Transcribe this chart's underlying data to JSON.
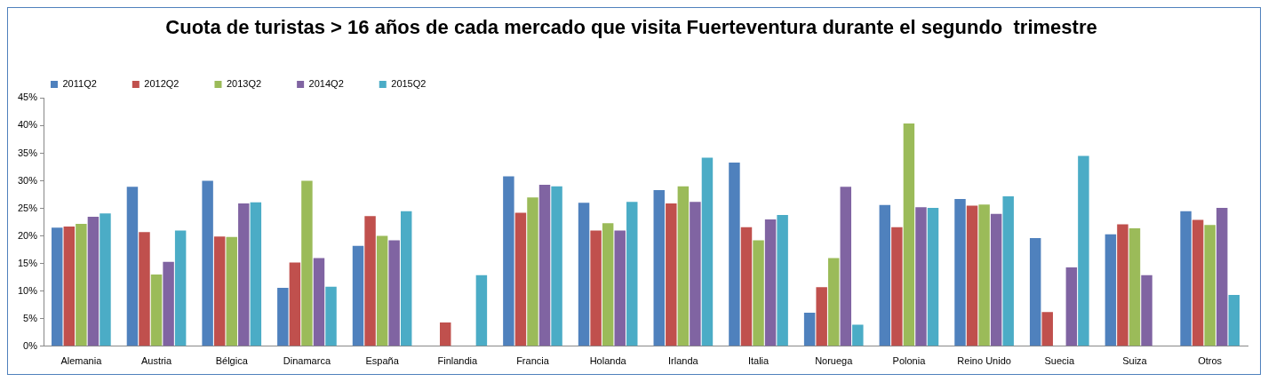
{
  "chart_data": {
    "type": "bar",
    "title": "Cuota de turistas > 16 años de cada mercado que visita Fuerteventura durante el segundo  trimestre",
    "categories": [
      "Alemania",
      "Austria",
      "Bélgica",
      "Dinamarca",
      "España",
      "Finlandia",
      "Francia",
      "Holanda",
      "Irlanda",
      "Italia",
      "Noruega",
      "Polonia",
      "Reino Unido",
      "Suecia",
      "Suiza",
      "Otros"
    ],
    "series": [
      {
        "name": "2011Q2",
        "color": "#4f81bd",
        "values": [
          21.5,
          28.9,
          30.0,
          10.6,
          18.2,
          null,
          30.8,
          26.0,
          28.3,
          33.3,
          6.1,
          25.6,
          26.7,
          19.6,
          20.3,
          24.5
        ]
      },
      {
        "name": "2012Q2",
        "color": "#c0504d",
        "values": [
          21.7,
          20.7,
          19.9,
          15.2,
          23.6,
          4.3,
          24.2,
          21.0,
          25.9,
          21.6,
          10.7,
          21.6,
          25.5,
          6.2,
          22.1,
          22.9
        ]
      },
      {
        "name": "2013Q2",
        "color": "#9bbb59",
        "values": [
          22.2,
          13.0,
          19.8,
          30.0,
          20.0,
          null,
          27.0,
          22.3,
          29.0,
          19.2,
          16.0,
          40.4,
          25.7,
          null,
          21.4,
          22.0
        ]
      },
      {
        "name": "2014Q2",
        "color": "#8064a2",
        "values": [
          23.5,
          15.3,
          25.9,
          16.0,
          19.2,
          null,
          29.3,
          21.0,
          26.2,
          23.0,
          28.9,
          25.2,
          24.0,
          14.3,
          12.9,
          25.1
        ]
      },
      {
        "name": "2015Q2",
        "color": "#4bacc6",
        "values": [
          24.1,
          21.0,
          26.1,
          10.8,
          24.5,
          12.9,
          29.0,
          26.2,
          34.2,
          23.8,
          3.9,
          25.1,
          27.2,
          34.5,
          null,
          9.3
        ]
      }
    ],
    "ylim": [
      0,
      45
    ],
    "yticks": [
      {
        "value": 0,
        "label": "0%"
      },
      {
        "value": 5,
        "label": "5%"
      },
      {
        "value": 10,
        "label": "10%"
      },
      {
        "value": 15,
        "label": "15%"
      },
      {
        "value": 20,
        "label": "20%"
      },
      {
        "value": 25,
        "label": "25%"
      },
      {
        "value": 30,
        "label": "30%"
      },
      {
        "value": 35,
        "label": "35%"
      },
      {
        "value": 40,
        "label": "40%"
      },
      {
        "value": 45,
        "label": "45%"
      }
    ],
    "grid": false,
    "legend": "top left"
  }
}
